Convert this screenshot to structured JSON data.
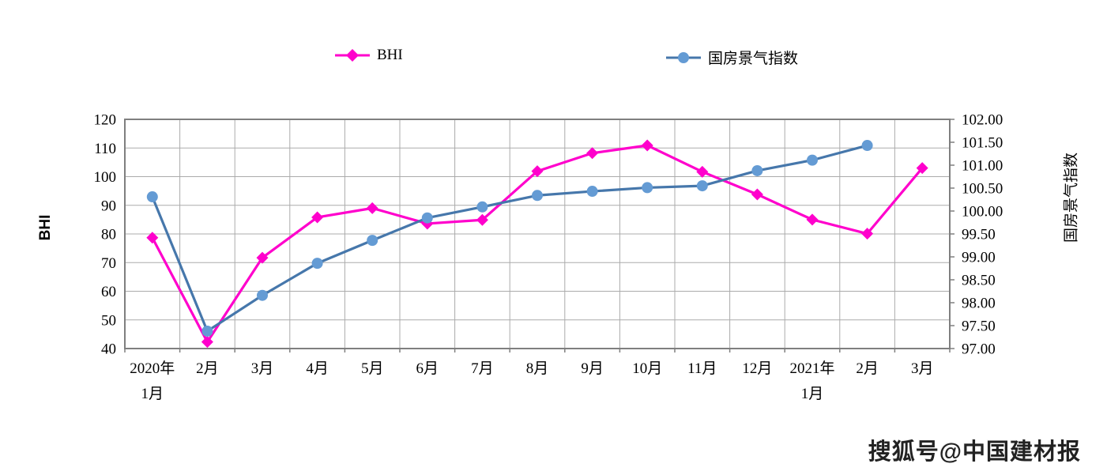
{
  "legend": {
    "items": [
      {
        "label": "BHI",
        "color": "#FF00CC",
        "marker": "diamond"
      },
      {
        "label": "国房景气指数",
        "color": "#4677AB",
        "marker_color": "#649BD4",
        "marker": "circle"
      }
    ]
  },
  "watermark": {
    "text": "搜狐号@中国建材报"
  },
  "chart_data": {
    "type": "line",
    "title": "",
    "legend_position": "top",
    "grid": true,
    "categories": [
      "2020年\n1月",
      "2月",
      "3月",
      "4月",
      "5月",
      "6月",
      "7月",
      "8月",
      "9月",
      "10月",
      "11月",
      "12月",
      "2021年\n1月",
      "2月",
      "3月"
    ],
    "series": [
      {
        "name": "BHI",
        "axis": "left",
        "color": "#FF00CC",
        "marker": "diamond",
        "values": [
          78.7,
          42.3,
          71.7,
          85.8,
          89.0,
          83.6,
          84.9,
          101.9,
          108.2,
          110.9,
          101.7,
          93.8,
          85.0,
          80.1,
          103.0
        ]
      },
      {
        "name": "国房景气指数",
        "axis": "right",
        "color": "#4677AB",
        "marker": "circle",
        "marker_color": "#649BD4",
        "values": [
          100.31,
          97.38,
          98.16,
          98.86,
          99.36,
          99.85,
          100.09,
          100.34,
          100.43,
          100.51,
          100.55,
          100.88,
          101.11,
          101.43,
          null
        ]
      }
    ],
    "left_axis": {
      "title": "BHI",
      "min": 40,
      "max": 120,
      "step": 10,
      "ticks": [
        "120",
        "110",
        "100",
        "90",
        "80",
        "70",
        "60",
        "50",
        "40"
      ]
    },
    "right_axis": {
      "title": "国房景气指数",
      "min": 97,
      "max": 102,
      "step": 0.5,
      "ticks": [
        "102.00",
        "101.50",
        "101.00",
        "100.50",
        "100.00",
        "99.50",
        "99.00",
        "98.50",
        "98.00",
        "97.50",
        "97.00"
      ]
    },
    "style": {
      "grid_color": "#ABABAB",
      "border_color": "#7F7F7F",
      "tick_color": "#7F7F7F"
    }
  }
}
